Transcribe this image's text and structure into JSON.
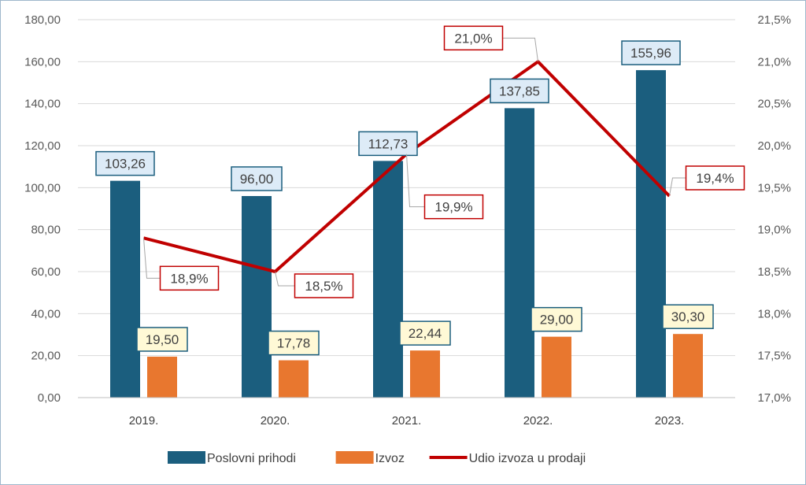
{
  "chart_data": {
    "type": "bar",
    "title": "",
    "categories": [
      "2019.",
      "2020.",
      "2021.",
      "2022.",
      "2023."
    ],
    "series": [
      {
        "name": "Poslovni prihodi",
        "kind": "bar",
        "axis": "left",
        "color": "#1b5e7e",
        "label_bg": "#ddebf7",
        "label_border": "#1b5e7e",
        "values": [
          103.26,
          96.0,
          112.73,
          137.85,
          155.96
        ],
        "labels": [
          "103,26",
          "96,00",
          "112,73",
          "137,85",
          "155,96"
        ]
      },
      {
        "name": "Izvoz",
        "kind": "bar",
        "axis": "left",
        "color": "#e8772f",
        "label_bg": "#fff9d6",
        "label_border": "#1b5e7e",
        "values": [
          19.5,
          17.78,
          22.44,
          29.0,
          30.3
        ],
        "labels": [
          "19,50",
          "17,78",
          "22,44",
          "29,00",
          "30,30"
        ]
      },
      {
        "name": "Udio izvoza u prodaji",
        "kind": "line",
        "axis": "right",
        "color": "#c00000",
        "label_bg": "#ffffff",
        "label_border": "#c00000",
        "values": [
          18.9,
          18.5,
          19.9,
          21.0,
          19.4
        ],
        "labels": [
          "18,9%",
          "18,5%",
          "19,9%",
          "21,0%",
          "19,4%"
        ]
      }
    ],
    "y_left": {
      "min": 0,
      "max": 180,
      "step": 20,
      "ticks": [
        "0,00",
        "20,00",
        "40,00",
        "60,00",
        "80,00",
        "100,00",
        "120,00",
        "140,00",
        "160,00",
        "180,00"
      ]
    },
    "y_right": {
      "min": 17.0,
      "max": 21.5,
      "step": 0.5,
      "ticks": [
        "17,0%",
        "17,5%",
        "18,0%",
        "18,5%",
        "19,0%",
        "19,5%",
        "20,0%",
        "20,5%",
        "21,0%",
        "21,5%"
      ]
    },
    "grid": true,
    "legend_position": "bottom"
  }
}
